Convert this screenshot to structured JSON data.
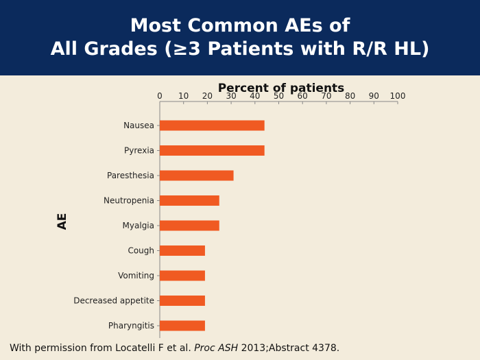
{
  "header": {
    "title_line1": "Most Common AEs of",
    "title_line2": "All Grades (≥3 Patients with R/R HL)"
  },
  "footer": {
    "prefix": "With permission from Locatelli F et al. ",
    "journal": "Proc ASH",
    "suffix": " 2013;Abstract 4378."
  },
  "colors": {
    "header_bg": "#0b2a5c",
    "background": "#f3ecdc",
    "bar": "#f05a22"
  },
  "chart_data": {
    "type": "bar",
    "orientation": "horizontal",
    "title": "Percent of patients",
    "xlabel": "Percent of patients",
    "ylabel": "AE",
    "xlim": [
      0,
      100
    ],
    "xticks": [
      0,
      10,
      20,
      30,
      40,
      50,
      60,
      70,
      80,
      90,
      100
    ],
    "x_axis_position": "top",
    "grid": false,
    "categories": [
      "Nausea",
      "Pyrexia",
      "Paresthesia",
      "Neutropenia",
      "Myalgia",
      "Cough",
      "Vomiting",
      "Decreased appetite",
      "Pharyngitis"
    ],
    "values": [
      44,
      44,
      31,
      25,
      25,
      19,
      19,
      19,
      19
    ]
  }
}
